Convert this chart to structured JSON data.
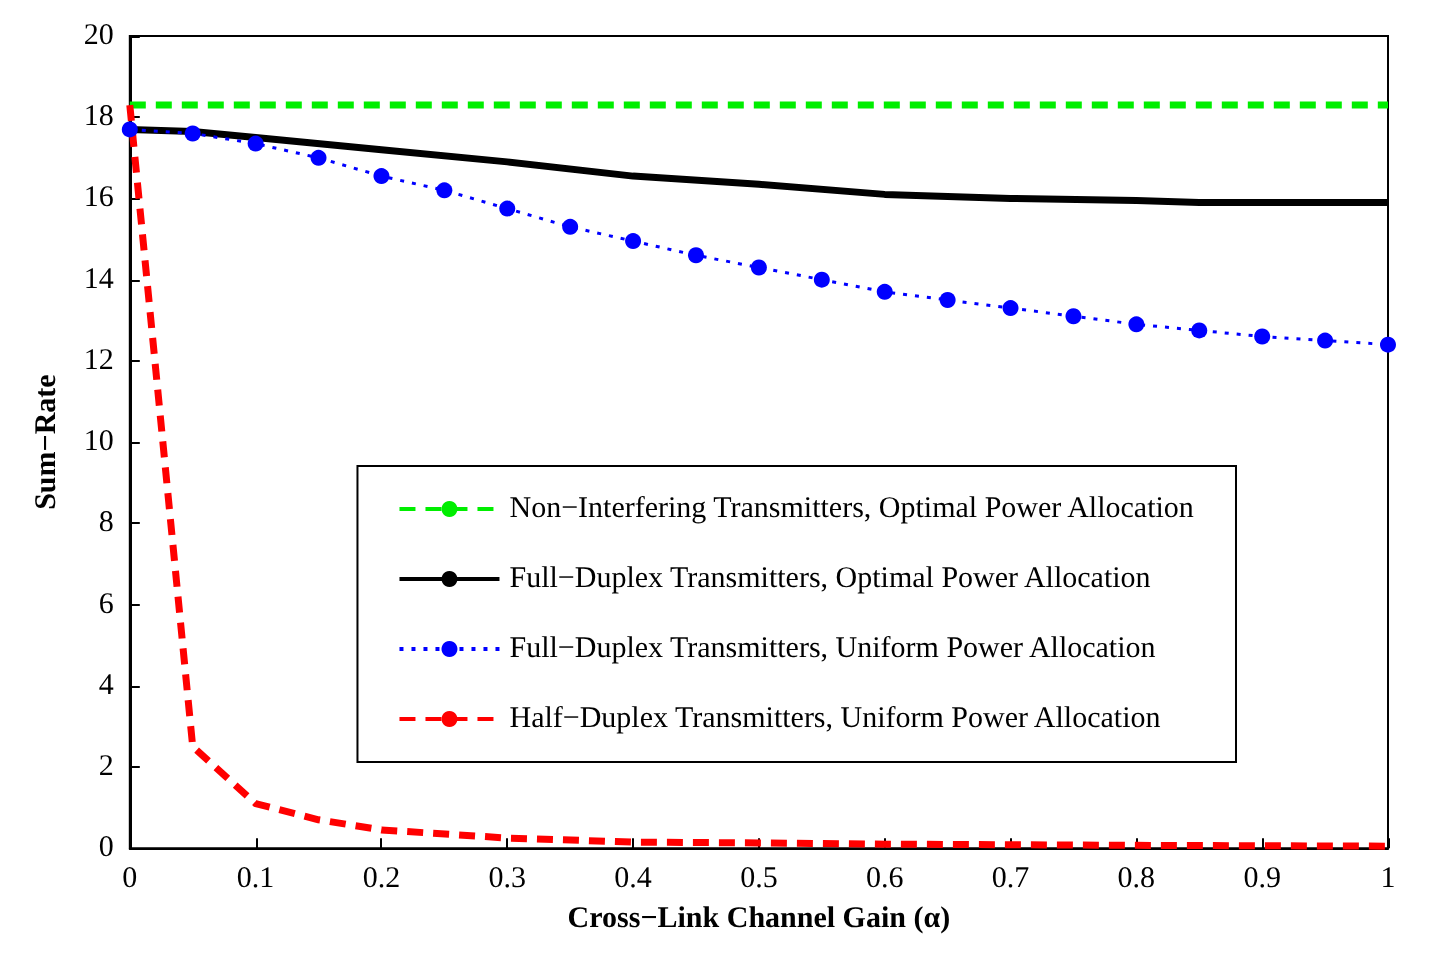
{
  "chart_data": {
    "type": "line",
    "xlabel": "Cross−Link Channel Gain (α)",
    "ylabel": "Sum−Rate",
    "xlim": [
      0,
      1
    ],
    "ylim": [
      0,
      20
    ],
    "xticks": [
      0,
      0.1,
      0.2,
      0.3,
      0.4,
      0.5,
      0.6,
      0.7,
      0.8,
      0.9,
      1
    ],
    "yticks": [
      0,
      2,
      4,
      6,
      8,
      10,
      12,
      14,
      16,
      18,
      20
    ],
    "grid": false,
    "legend": "right",
    "series": [
      {
        "name": "Non−Interfering Transmitters, Optimal Power Allocation",
        "color": "#00ee00",
        "line_style": "dashed",
        "marker": "none",
        "x": [
          0,
          1
        ],
        "values": [
          18.3,
          18.3
        ]
      },
      {
        "name": "Full−Duplex Transmitters, Optimal Power Allocation",
        "color": "#000000",
        "line_style": "solid",
        "marker": "none",
        "x": [
          0,
          0.05,
          0.1,
          0.2,
          0.3,
          0.4,
          0.5,
          0.6,
          0.7,
          0.8,
          0.85,
          1
        ],
        "values": [
          17.7,
          17.65,
          17.5,
          17.2,
          16.9,
          16.55,
          16.35,
          16.1,
          16.0,
          15.95,
          15.9,
          15.9
        ]
      },
      {
        "name": "Full−Duplex Transmitters, Uniform Power Allocation",
        "color": "#0000ff",
        "line_style": "dotted",
        "marker": "circle",
        "x": [
          0,
          0.05,
          0.1,
          0.15,
          0.2,
          0.25,
          0.3,
          0.35,
          0.4,
          0.45,
          0.5,
          0.55,
          0.6,
          0.65,
          0.7,
          0.75,
          0.8,
          0.85,
          0.9,
          0.95,
          1
        ],
        "values": [
          17.7,
          17.6,
          17.35,
          17.0,
          16.55,
          16.2,
          15.75,
          15.3,
          14.95,
          14.6,
          14.3,
          14.0,
          13.7,
          13.5,
          13.3,
          13.1,
          12.9,
          12.75,
          12.6,
          12.5,
          12.4
        ]
      },
      {
        "name": "Half−Duplex Transmitters, Uniform Power Allocation",
        "color": "#ff0000",
        "line_style": "dashed",
        "marker": "none",
        "x": [
          0,
          0.05,
          0.1,
          0.15,
          0.2,
          0.3,
          0.4,
          0.5,
          0.6,
          0.8,
          1
        ],
        "values": [
          18.3,
          2.5,
          1.1,
          0.7,
          0.45,
          0.25,
          0.15,
          0.13,
          0.1,
          0.07,
          0.05
        ]
      }
    ]
  }
}
